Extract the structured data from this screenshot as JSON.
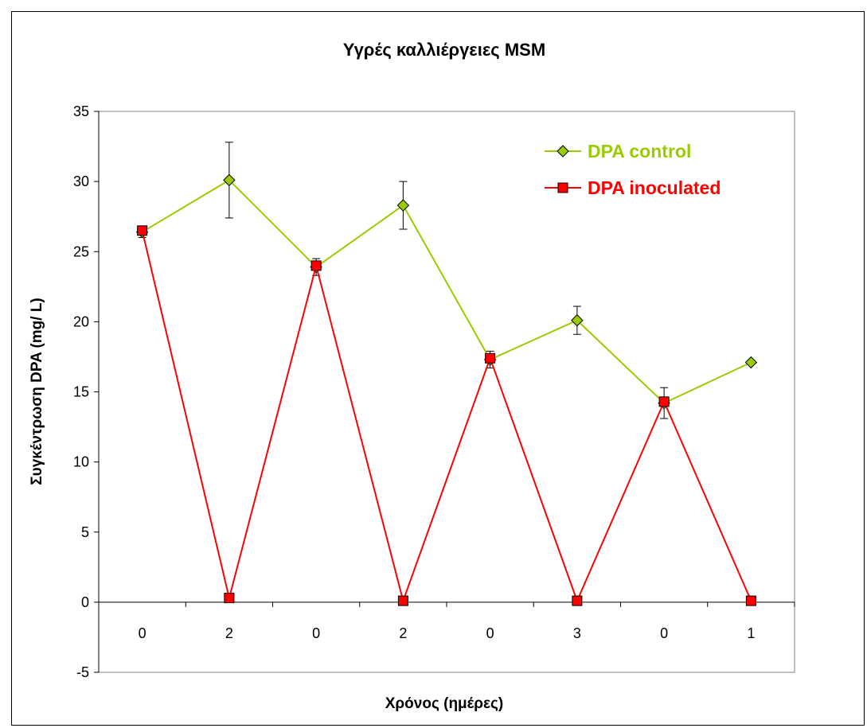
{
  "chart_data": {
    "type": "line",
    "title": "Υγρές καλλιέργειες MSM",
    "xlabel": "Χρόνος (ημέρες)",
    "ylabel": "Συγκέντρωση DPA (mg/ L)",
    "categories": [
      "0",
      "2",
      "0",
      "2",
      "0",
      "3",
      "0",
      "1"
    ],
    "ylim": [
      -5,
      35
    ],
    "yticks": [
      -5,
      0,
      5,
      10,
      15,
      20,
      25,
      30,
      35
    ],
    "grid": false,
    "legend_position": "top-right",
    "series": [
      {
        "name": "DPA control",
        "color": "#99cc00",
        "marker": "diamond",
        "values": [
          26.4,
          30.1,
          23.9,
          28.3,
          17.3,
          20.1,
          14.2,
          17.1
        ],
        "error": [
          0.4,
          2.7,
          0.6,
          1.7,
          0.6,
          1.0,
          1.1,
          0
        ]
      },
      {
        "name": "DPA inoculated",
        "color": "#ff0000",
        "marker": "square",
        "values": [
          26.5,
          0.3,
          24.0,
          0.1,
          17.4,
          0.1,
          14.3,
          0.1
        ],
        "error": [
          0,
          0,
          0,
          0,
          0,
          0,
          0,
          0
        ]
      }
    ]
  }
}
